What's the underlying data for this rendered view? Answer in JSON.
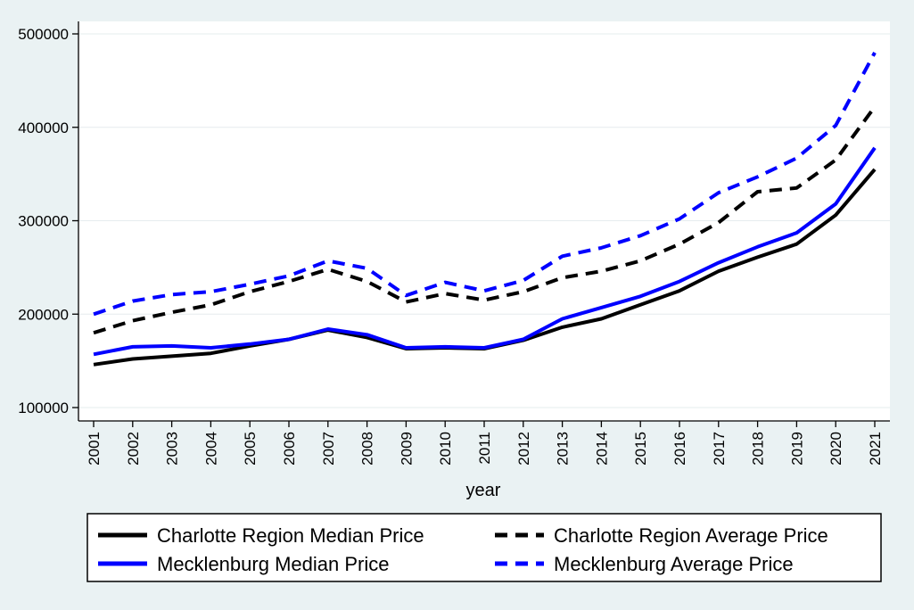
{
  "chart_data": {
    "type": "line",
    "title": "",
    "xlabel": "year",
    "ylabel": "",
    "ylim": [
      100000,
      500000
    ],
    "yticks": [
      100000,
      200000,
      300000,
      400000,
      500000
    ],
    "x": [
      2001,
      2002,
      2003,
      2004,
      2005,
      2006,
      2007,
      2008,
      2009,
      2010,
      2011,
      2012,
      2013,
      2014,
      2015,
      2016,
      2017,
      2018,
      2019,
      2020,
      2021
    ],
    "series": [
      {
        "name": "Charlotte Region Median Price",
        "color": "#000000",
        "dash": "solid",
        "values": [
          146000,
          152000,
          155000,
          158000,
          166000,
          173000,
          183000,
          175000,
          163000,
          164000,
          163000,
          172000,
          186000,
          195000,
          210000,
          225000,
          246000,
          261000,
          275000,
          306000,
          355000
        ]
      },
      {
        "name": "Charlotte Region Average Price",
        "color": "#000000",
        "dash": "dashed",
        "values": [
          180000,
          193000,
          202000,
          210000,
          224000,
          235000,
          248000,
          235000,
          213000,
          222000,
          215000,
          224000,
          239000,
          246000,
          257000,
          275000,
          298000,
          331000,
          335000,
          365000,
          422000
        ]
      },
      {
        "name": "Mecklenburg Median Price",
        "color": "#0000ff",
        "dash": "solid",
        "values": [
          157000,
          165000,
          166000,
          164000,
          168000,
          173000,
          184000,
          178000,
          164000,
          165000,
          164000,
          173000,
          195000,
          207000,
          219000,
          235000,
          255000,
          272000,
          287000,
          318000,
          378000
        ]
      },
      {
        "name": "Mecklenburg Average Price",
        "color": "#0000ff",
        "dash": "dashed",
        "values": [
          200000,
          214000,
          221000,
          224000,
          232000,
          241000,
          257000,
          249000,
          220000,
          234000,
          225000,
          236000,
          262000,
          271000,
          284000,
          302000,
          330000,
          347000,
          367000,
          402000,
          480000
        ]
      }
    ],
    "legend": {
      "placement": "bottom",
      "entries": [
        "Charlotte Region Median Price",
        "Charlotte Region Average Price",
        "Mecklenburg Median Price",
        "Mecklenburg Average Price"
      ]
    },
    "grid": true
  }
}
